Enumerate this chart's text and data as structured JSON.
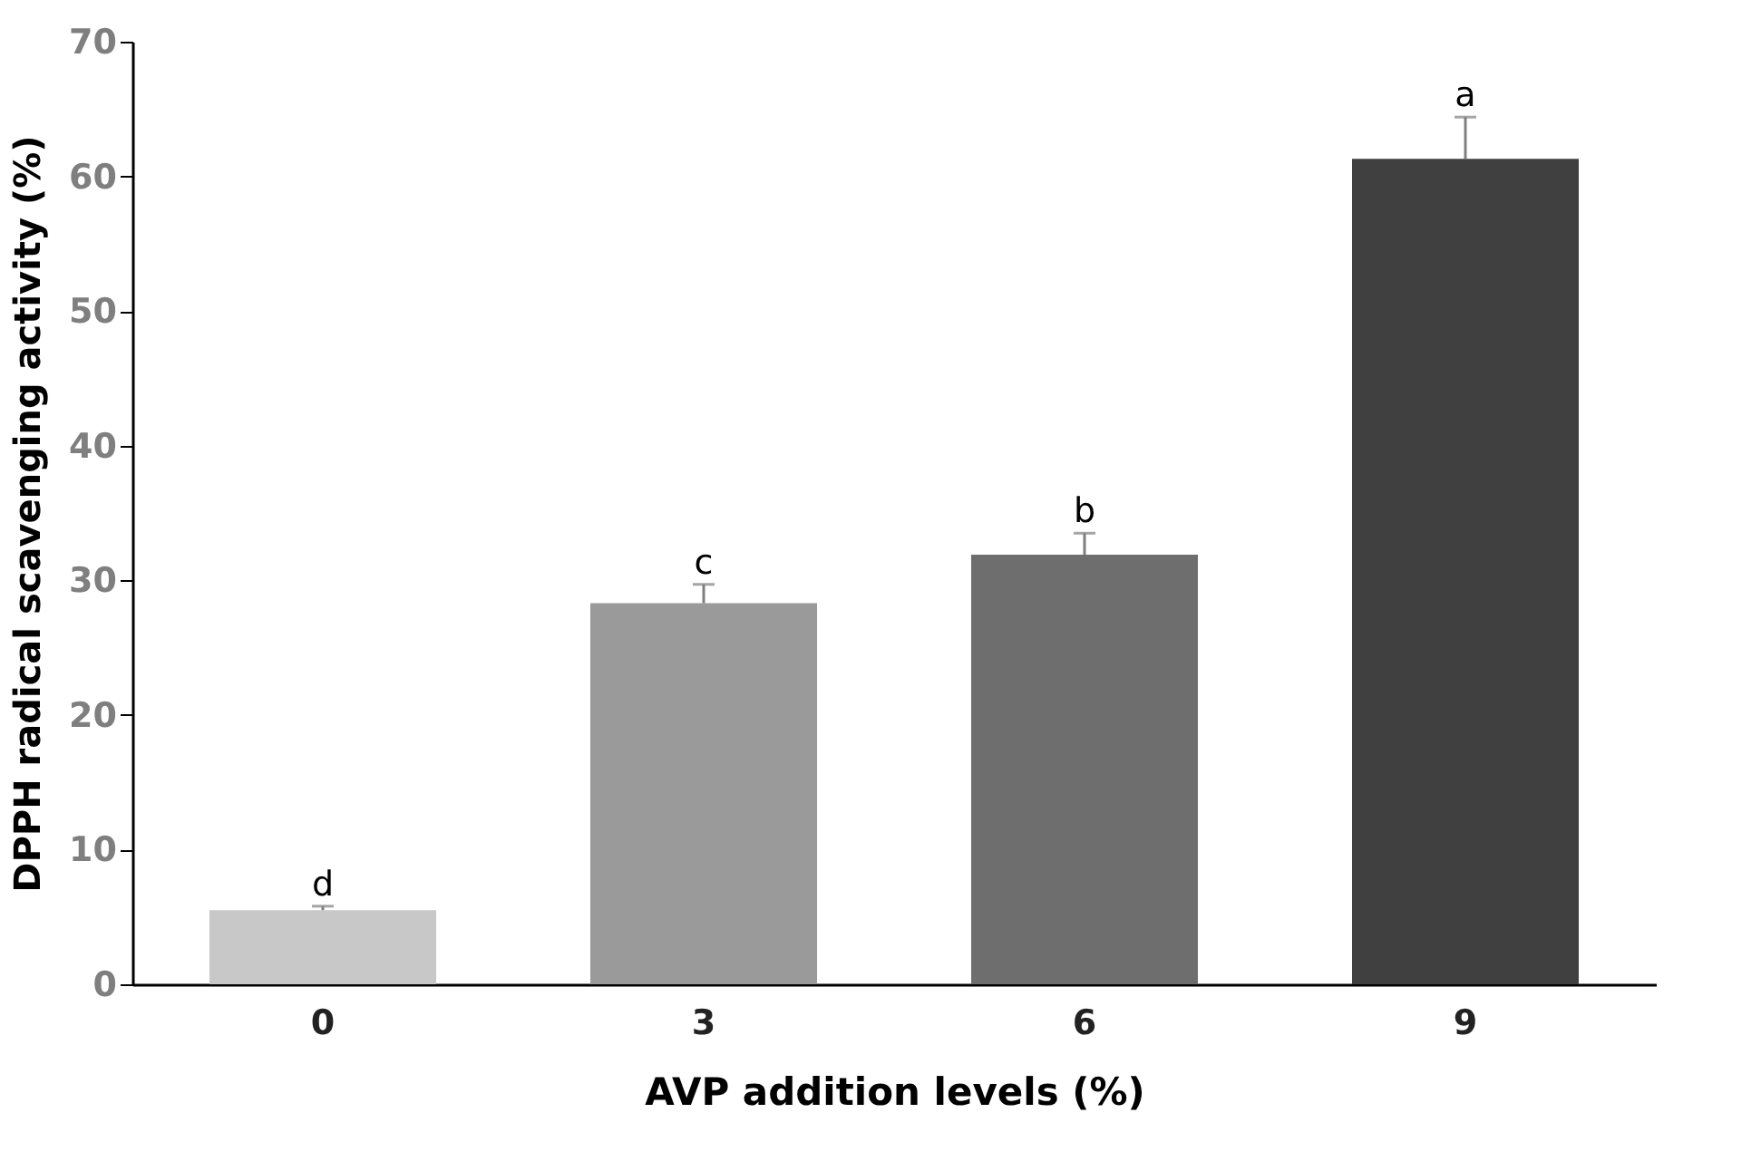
{
  "chart_data": {
    "type": "bar",
    "xlabel": "AVP addition levels (%)",
    "ylabel": "DPPH radical scavenging activity (%)",
    "categories": [
      "0",
      "3",
      "6",
      "9"
    ],
    "values": [
      5.5,
      28.3,
      31.9,
      61.3
    ],
    "colors": [
      "#c8c8c8",
      "#9a9a9a",
      "#6e6e6e",
      "#404040"
    ],
    "errors": [
      [
        5.5,
        5.8
      ],
      [
        28.3,
        29.7
      ],
      [
        31.9,
        33.5
      ],
      [
        61.3,
        64.4
      ]
    ],
    "annotations": [
      {
        "text": "d",
        "x": "0",
        "y": 5.8
      },
      {
        "text": "c",
        "x": "3",
        "y": 29.7
      },
      {
        "text": "b",
        "x": "6",
        "y": 33.5
      },
      {
        "text": "a",
        "x": "9",
        "y": 64.4
      }
    ],
    "ylim": [
      0,
      70
    ],
    "yticks": [
      0,
      10,
      20,
      30,
      40,
      50,
      60,
      70
    ],
    "grid": false
  }
}
